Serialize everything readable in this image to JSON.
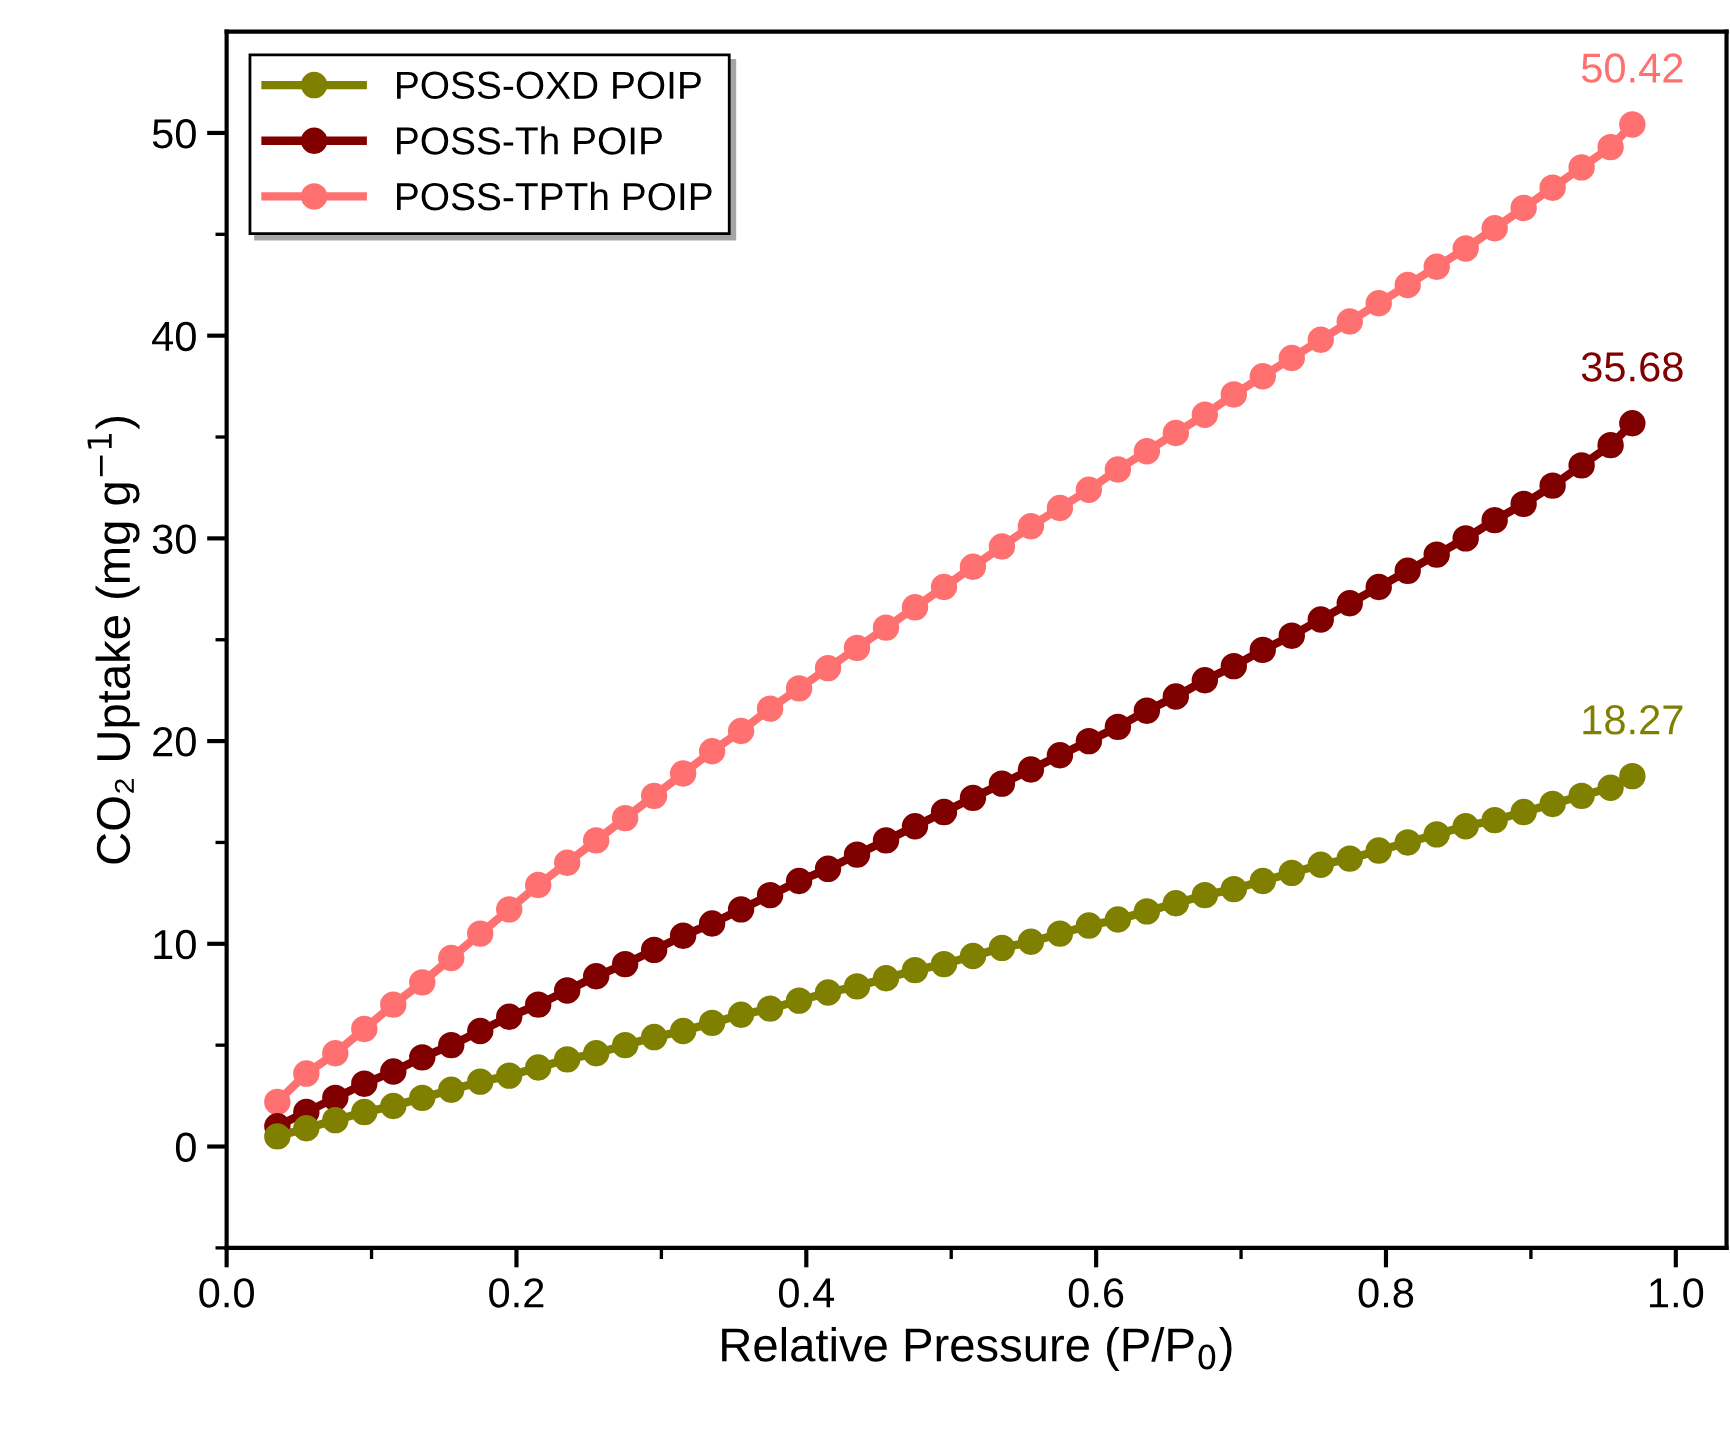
{
  "chart_data": {
    "type": "line",
    "xlabel": "Relative Pressure (P/P$_{0}$)",
    "ylabel": "CO₂ Uptake (mg g$^{−1}$)",
    "x": [
      0.035,
      0.055,
      0.075,
      0.095,
      0.115,
      0.135,
      0.155,
      0.175,
      0.195,
      0.215,
      0.235,
      0.255,
      0.275,
      0.295,
      0.315,
      0.335,
      0.355,
      0.375,
      0.395,
      0.415,
      0.435,
      0.455,
      0.475,
      0.495,
      0.515,
      0.535,
      0.555,
      0.575,
      0.595,
      0.615,
      0.635,
      0.655,
      0.675,
      0.695,
      0.715,
      0.735,
      0.755,
      0.775,
      0.795,
      0.815,
      0.835,
      0.855,
      0.875,
      0.895,
      0.915,
      0.935,
      0.955,
      0.97
    ],
    "series": [
      {
        "name": "POSS-OXD POIP",
        "color": "#808000",
        "values": [
          0.5,
          0.9,
          1.3,
          1.7,
          2.0,
          2.4,
          2.8,
          3.2,
          3.5,
          3.9,
          4.3,
          4.6,
          5.0,
          5.4,
          5.7,
          6.1,
          6.5,
          6.8,
          7.2,
          7.6,
          7.9,
          8.3,
          8.7,
          9.0,
          9.4,
          9.8,
          10.1,
          10.5,
          10.9,
          11.2,
          11.6,
          12.0,
          12.4,
          12.7,
          13.1,
          13.5,
          13.9,
          14.2,
          14.6,
          15.0,
          15.4,
          15.8,
          16.1,
          16.5,
          16.9,
          17.3,
          17.7,
          18.27
        ],
        "value_labels": [
          null,
          null,
          null,
          null,
          null,
          null,
          null,
          null,
          null,
          null,
          null,
          null,
          null,
          null,
          null,
          null,
          null,
          null,
          null,
          null,
          null,
          null,
          null,
          null,
          null,
          null,
          null,
          null,
          null,
          null,
          null,
          null,
          null,
          null,
          null,
          null,
          null,
          null,
          null,
          null,
          null,
          null,
          null,
          null,
          null,
          null,
          null,
          "18.27"
        ]
      },
      {
        "name": "POSS-Th POIP",
        "color": "#800000",
        "values": [
          1.0,
          1.7,
          2.4,
          3.1,
          3.7,
          4.4,
          5.0,
          5.7,
          6.4,
          7.0,
          7.7,
          8.4,
          9.0,
          9.7,
          10.4,
          11.0,
          11.7,
          12.4,
          13.1,
          13.7,
          14.4,
          15.1,
          15.8,
          16.5,
          17.2,
          17.9,
          18.6,
          19.3,
          20.0,
          20.7,
          21.5,
          22.2,
          23.0,
          23.7,
          24.5,
          25.2,
          26.0,
          26.8,
          27.6,
          28.4,
          29.2,
          30.0,
          30.9,
          31.7,
          32.6,
          33.6,
          34.6,
          35.68
        ],
        "value_labels": [
          null,
          null,
          null,
          null,
          null,
          null,
          null,
          null,
          null,
          null,
          null,
          null,
          null,
          null,
          null,
          null,
          null,
          null,
          null,
          null,
          null,
          null,
          null,
          null,
          null,
          null,
          null,
          null,
          null,
          null,
          null,
          null,
          null,
          null,
          null,
          null,
          null,
          null,
          null,
          null,
          null,
          null,
          null,
          null,
          null,
          null,
          null,
          "35.68"
        ]
      },
      {
        "name": "POSS-TPTh POIP",
        "color": "#ff7070",
        "values": [
          2.2,
          3.6,
          4.6,
          5.8,
          7.0,
          8.1,
          9.3,
          10.5,
          11.7,
          12.9,
          14.0,
          15.1,
          16.2,
          17.3,
          18.4,
          19.5,
          20.5,
          21.6,
          22.6,
          23.6,
          24.6,
          25.6,
          26.6,
          27.6,
          28.6,
          29.6,
          30.6,
          31.5,
          32.4,
          33.4,
          34.3,
          35.2,
          36.1,
          37.1,
          38.0,
          38.9,
          39.8,
          40.7,
          41.6,
          42.5,
          43.4,
          44.3,
          45.3,
          46.3,
          47.3,
          48.3,
          49.3,
          50.42
        ],
        "value_labels": [
          null,
          null,
          null,
          null,
          null,
          null,
          null,
          null,
          null,
          null,
          null,
          null,
          null,
          null,
          null,
          null,
          null,
          null,
          null,
          null,
          null,
          null,
          null,
          null,
          null,
          null,
          null,
          null,
          null,
          null,
          null,
          null,
          null,
          null,
          null,
          null,
          null,
          null,
          null,
          null,
          null,
          null,
          null,
          null,
          null,
          null,
          null,
          "50.42"
        ]
      }
    ],
    "xlim": [
      0,
      1.035
    ],
    "xticks": [
      {
        "value": 0,
        "label": "0.0"
      },
      0.2,
      0.4,
      0.6,
      0.8,
      {
        "value": 1,
        "label": "1.0"
      }
    ],
    "ylim": [
      -5,
      55
    ],
    "yticks": [
      0,
      10,
      20,
      30,
      40,
      50
    ],
    "marker": "circle",
    "line_style": "solid",
    "legend": "top left",
    "grid": false
  }
}
